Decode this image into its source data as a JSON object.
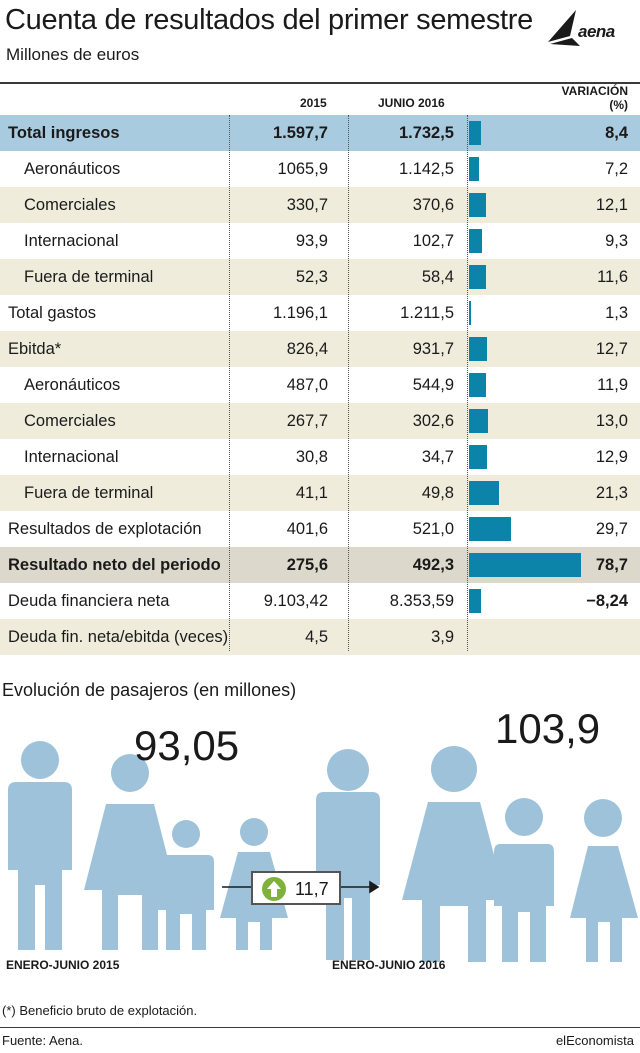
{
  "title": "Cuenta de resultados del primer semestre",
  "subtitle": "Millones de euros",
  "logo_text": "aena",
  "colors": {
    "bar": "#0c83a8",
    "band_blue": "#a9cbe0",
    "band_beige": "#f0ecdc",
    "band_grey": "#dcd9cc",
    "people": "#9ec2da"
  },
  "headers": {
    "col_2015": "2015",
    "col_2016": "JUNIO 2016",
    "col_var": "VARIACIÓN",
    "col_var_unit": "(%)"
  },
  "chart_data": {
    "type": "table",
    "columns": [
      "",
      "2015",
      "JUNIO 2016",
      "VARIACIÓN (%)"
    ],
    "rows": [
      {
        "label": "Total ingresos",
        "v2015": "1.597,7",
        "v2016": "1.732,5",
        "var": "8,4",
        "var_num": 8.4,
        "bold": true,
        "indent": false,
        "band": "blue"
      },
      {
        "label": "Aeronáuticos",
        "v2015": "1065,9",
        "v2016": "1.142,5",
        "var": "7,2",
        "var_num": 7.2,
        "bold": false,
        "indent": true,
        "band": "none"
      },
      {
        "label": "Comerciales",
        "v2015": "330,7",
        "v2016": "370,6",
        "var": "12,1",
        "var_num": 12.1,
        "bold": false,
        "indent": true,
        "band": "beige"
      },
      {
        "label": "Internacional",
        "v2015": "93,9",
        "v2016": "102,7",
        "var": "9,3",
        "var_num": 9.3,
        "bold": false,
        "indent": true,
        "band": "none"
      },
      {
        "label": "Fuera de terminal",
        "v2015": "52,3",
        "v2016": "58,4",
        "var": "11,6",
        "var_num": 11.6,
        "bold": false,
        "indent": true,
        "band": "beige"
      },
      {
        "label": "Total gastos",
        "v2015": "1.196,1",
        "v2016": "1.211,5",
        "var": "1,3",
        "var_num": 1.3,
        "bold": false,
        "indent": false,
        "band": "none"
      },
      {
        "label": "Ebitda*",
        "v2015": "826,4",
        "v2016": "931,7",
        "var": "12,7",
        "var_num": 12.7,
        "bold": false,
        "indent": false,
        "band": "beige"
      },
      {
        "label": "Aeronáuticos",
        "v2015": "487,0",
        "v2016": "544,9",
        "var": "11,9",
        "var_num": 11.9,
        "bold": false,
        "indent": true,
        "band": "none"
      },
      {
        "label": "Comerciales",
        "v2015": "267,7",
        "v2016": "302,6",
        "var": "13,0",
        "var_num": 13.0,
        "bold": false,
        "indent": true,
        "band": "beige"
      },
      {
        "label": "Internacional",
        "v2015": "30,8",
        "v2016": "34,7",
        "var": "12,9",
        "var_num": 12.9,
        "bold": false,
        "indent": true,
        "band": "none"
      },
      {
        "label": "Fuera de terminal",
        "v2015": "41,1",
        "v2016": "49,8",
        "var": "21,3",
        "var_num": 21.3,
        "bold": false,
        "indent": true,
        "band": "beige"
      },
      {
        "label": "Resultados de explotación",
        "v2015": "401,6",
        "v2016": "521,0",
        "var": "29,7",
        "var_num": 29.7,
        "bold": false,
        "indent": false,
        "band": "none"
      },
      {
        "label": "Resultado neto del periodo",
        "v2015": "275,6",
        "v2016": "492,3",
        "var": "78,7",
        "var_num": 78.7,
        "bold": true,
        "indent": false,
        "band": "grey"
      },
      {
        "label": "Deuda financiera neta",
        "v2015": "9.103,42",
        "v2016": "8.353,59",
        "var": "−8,24",
        "var_num": -8.24,
        "bold": false,
        "var_bold": true,
        "indent": false,
        "band": "none"
      },
      {
        "label": "Deuda fin. neta/ebitda (veces)",
        "v2015": "4,5",
        "v2016": "3,9",
        "var": "",
        "var_num": null,
        "bold": false,
        "indent": false,
        "band": "beige"
      }
    ]
  },
  "passengers": {
    "title": "Evolución de pasajeros (en millones)",
    "value_2015": "93,05",
    "value_2016": "103,9",
    "label_2015": "ENERO-JUNIO 2015",
    "label_2016": "ENERO-JUNIO 2016",
    "growth": "11,7"
  },
  "footnote": "(*) Beneficio bruto de explotación.",
  "source": "Fuente: Aena.",
  "brand": "elEconomista"
}
